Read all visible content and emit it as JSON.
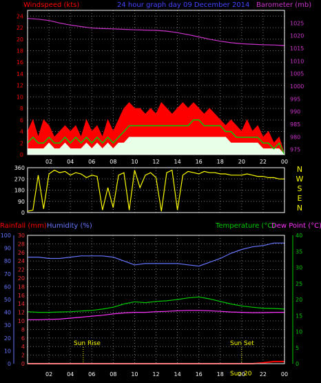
{
  "header": {
    "left_label": "Windspeed (kts)",
    "title": "24 hour graph day  09 December 2014",
    "right_label": "Barometer (mb)"
  },
  "bottom_header": {
    "rainfall_label": "Rainfall (mm)",
    "humidity_label": "Humidity (%)",
    "temperature_label": "Temperature (°C)",
    "dewpoint_label": "Dew Point (°C)"
  },
  "annotations": {
    "sunrise": "Sun Rise",
    "sunset": "Sun Set",
    "sunset_time_fragment": "Sun 20"
  },
  "colors": {
    "wind_red": "#ff0000",
    "wind_green": "#00cc00",
    "wind_white": "#e8ffe8",
    "barometer": "#cc33cc",
    "wind_dir": "#ffff00",
    "humidity": "#6677ff",
    "temperature": "#00cc00",
    "dewpoint": "#ff33ff",
    "rain": "#ff0000",
    "grid": "#777777"
  },
  "chart_data": [
    {
      "type": "line",
      "name": "wind_and_barometer",
      "x_ticks": [
        "02",
        "04",
        "06",
        "08",
        "10",
        "12",
        "14",
        "16",
        "18",
        "20",
        "22",
        "00"
      ],
      "x_range": [
        0,
        24
      ],
      "left_axis": {
        "title": "Windspeed (kts)",
        "ylim": [
          0,
          25
        ],
        "ticks": [
          0,
          2,
          4,
          6,
          8,
          10,
          12,
          14,
          16,
          18,
          20,
          22,
          24
        ]
      },
      "right_axis": {
        "title": "Barometer (mb)",
        "ylim": [
          973,
          1030
        ],
        "ticks": [
          975,
          980,
          985,
          990,
          995,
          1000,
          1005,
          1010,
          1015,
          1020,
          1025
        ]
      },
      "gust_x": [
        0.0,
        0.5,
        1.0,
        1.5,
        2.0,
        2.5,
        3.0,
        3.5,
        4.0,
        4.5,
        5.0,
        5.5,
        6.0,
        6.5,
        7.0,
        7.5,
        8.0,
        8.5,
        9.0,
        9.5,
        10.0,
        10.5,
        11.0,
        11.5,
        12.0,
        12.5,
        13.0,
        13.5,
        14.0,
        14.5,
        15.0,
        15.5,
        16.0,
        16.5,
        17.0,
        17.5,
        18.0,
        18.5,
        19.0,
        19.5,
        20.0,
        20.5,
        21.0,
        21.5,
        22.0,
        22.5,
        23.0,
        23.5,
        24.0
      ],
      "gust_y": [
        4,
        6,
        3,
        6,
        5,
        3,
        4,
        5,
        4,
        5,
        3,
        6,
        4,
        5,
        3,
        6,
        4,
        6,
        8,
        9,
        8,
        8,
        7,
        8,
        7,
        9,
        8,
        7,
        8,
        9,
        8,
        9,
        8,
        7,
        8,
        7,
        6,
        5,
        6,
        5,
        4,
        6,
        4,
        5,
        3,
        4,
        2,
        3,
        0
      ],
      "avg_y": [
        2,
        3,
        2,
        2,
        3,
        2,
        2,
        3,
        2,
        3,
        2,
        3,
        2,
        3,
        2,
        3,
        2,
        3,
        4,
        5,
        5,
        5,
        5,
        5,
        5,
        5,
        5,
        5,
        5,
        5,
        5,
        6,
        6,
        5,
        5,
        5,
        5,
        4,
        4,
        3,
        3,
        3,
        3,
        3,
        2,
        2,
        1,
        2,
        0
      ],
      "min_y": [
        1,
        1,
        1,
        1,
        2,
        1,
        1,
        2,
        1,
        1,
        1,
        2,
        1,
        2,
        1,
        2,
        1,
        2,
        2,
        3,
        3,
        3,
        3,
        3,
        3,
        3,
        3,
        3,
        3,
        3,
        3,
        3,
        3,
        3,
        3,
        3,
        3,
        3,
        2,
        2,
        2,
        2,
        2,
        2,
        1,
        1,
        1,
        1,
        0
      ],
      "barometer_x": [
        0,
        1,
        2,
        3,
        4,
        5,
        6,
        7,
        8,
        9,
        10,
        11,
        12,
        13,
        14,
        15,
        16,
        17,
        18,
        19,
        20,
        21,
        22,
        23,
        24
      ],
      "barometer_y": [
        1026.8,
        1026.5,
        1026.0,
        1025.0,
        1024.2,
        1023.6,
        1023.0,
        1022.8,
        1022.7,
        1022.5,
        1022.3,
        1022.2,
        1022.1,
        1021.8,
        1021.2,
        1020.4,
        1019.5,
        1018.6,
        1017.8,
        1017.2,
        1016.8,
        1016.6,
        1016.4,
        1016.3,
        1016.1
      ]
    },
    {
      "type": "scatter",
      "name": "wind_direction",
      "x_range": [
        0,
        24
      ],
      "left_axis": {
        "ylim": [
          0,
          360
        ],
        "ticks": [
          0,
          90,
          180,
          270,
          360
        ]
      },
      "right_labels": [
        "N",
        "W",
        "S",
        "E",
        "N"
      ],
      "x": [
        0.0,
        0.5,
        1.0,
        1.5,
        2.0,
        2.5,
        3.0,
        3.5,
        4.0,
        4.5,
        5.0,
        5.5,
        6.0,
        6.5,
        7.0,
        7.5,
        8.0,
        8.5,
        9.0,
        9.5,
        10.0,
        10.5,
        11.0,
        11.5,
        12.0,
        12.5,
        13.0,
        13.5,
        14.0,
        14.5,
        15.0,
        15.5,
        16.0,
        16.5,
        17.0,
        17.5,
        18.0,
        18.5,
        19.0,
        19.5,
        20.0,
        20.5,
        21.0,
        21.5,
        22.0,
        22.5,
        23.0,
        23.5,
        24.0
      ],
      "y": [
        10,
        20,
        300,
        30,
        310,
        340,
        320,
        330,
        300,
        320,
        310,
        280,
        300,
        290,
        20,
        200,
        40,
        300,
        320,
        20,
        340,
        200,
        300,
        320,
        280,
        10,
        320,
        340,
        20,
        300,
        330,
        320,
        310,
        330,
        320,
        320,
        310,
        310,
        300,
        300,
        300,
        310,
        300,
        290,
        290,
        280,
        280,
        270,
        270
      ]
    },
    {
      "type": "line",
      "name": "rain_humidity_temperature",
      "x_ticks": [
        "02",
        "04",
        "06",
        "08",
        "10",
        "12",
        "14",
        "16",
        "18",
        "20",
        "22",
        "00"
      ],
      "x_range": [
        0,
        24
      ],
      "humidity_axis": {
        "title": "Humidity (%)",
        "ylim": [
          0,
          100
        ],
        "ticks": [
          0,
          10,
          20,
          30,
          40,
          50,
          60,
          70,
          80,
          90,
          100
        ]
      },
      "rain_axis": {
        "title": "Rainfall (mm)",
        "ylim": [
          0,
          30
        ],
        "ticks": [
          0,
          2,
          4,
          6,
          8,
          10,
          12,
          14,
          16,
          18,
          20,
          22,
          24,
          26,
          28,
          30
        ]
      },
      "temperature_axis": {
        "title": "Temperature (°C)Dew Point (°C)",
        "ylim": [
          0,
          40
        ],
        "ticks": [
          0,
          5,
          10,
          15,
          20,
          25,
          30,
          35,
          40
        ]
      },
      "x": [
        0,
        1,
        2,
        3,
        4,
        5,
        6,
        7,
        8,
        9,
        10,
        11,
        12,
        13,
        14,
        15,
        16,
        17,
        18,
        19,
        20,
        21,
        22,
        23,
        24
      ],
      "humidity": [
        83,
        83,
        82,
        82,
        83,
        84,
        84,
        84,
        83,
        80,
        77,
        78,
        78,
        78,
        78,
        77,
        76,
        79,
        82,
        86,
        89,
        91,
        92,
        94,
        94
      ],
      "temperature": [
        16.2,
        16.0,
        16.0,
        16.1,
        16.2,
        16.4,
        16.6,
        17.0,
        17.6,
        18.6,
        19.3,
        19.0,
        19.4,
        19.6,
        20.0,
        20.5,
        20.8,
        20.2,
        19.4,
        18.6,
        18.0,
        17.6,
        17.3,
        17.2,
        17.0
      ],
      "dewpoint": [
        13.7,
        13.7,
        13.8,
        13.9,
        14.2,
        14.5,
        14.8,
        15.1,
        15.5,
        15.8,
        16.0,
        16.0,
        16.2,
        16.3,
        16.5,
        16.6,
        16.6,
        16.5,
        16.3,
        16.1,
        16.0,
        15.9,
        15.9,
        16.0,
        16.0
      ],
      "rainfall": [
        0,
        0,
        0,
        0,
        0,
        0,
        0,
        0,
        0,
        0,
        0,
        0,
        0,
        0,
        0,
        0,
        0,
        0,
        0,
        0,
        0,
        0,
        0.2,
        0.5,
        0.5
      ],
      "sunrise_hour": 5.2,
      "sunset_hour": 20.0
    }
  ]
}
